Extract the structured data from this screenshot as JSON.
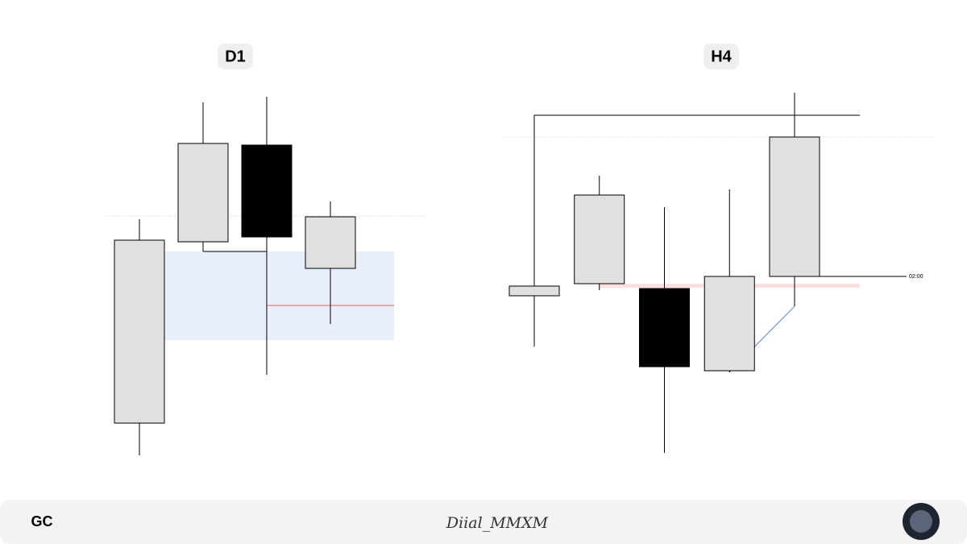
{
  "chart_data": [
    {
      "type": "candlestick",
      "title": "D1",
      "ylim": [
        20,
        500
      ],
      "up_color": "#e0e0e0",
      "down_color": "#000000",
      "open": [
        75,
        300,
        420,
        267
      ],
      "high": [
        328,
        473,
        480,
        350
      ],
      "low": [
        35,
        288,
        135,
        198
      ],
      "close": [
        302,
        422,
        306,
        331
      ]
    },
    {
      "type": "candlestick",
      "title": "H4",
      "ylim": [
        20,
        500
      ],
      "up_color": "#e0e0e0",
      "down_color": "#000000",
      "open": [
        233,
        248,
        242,
        140,
        257
      ],
      "high": [
        457,
        382,
        343,
        365,
        485
      ],
      "low": [
        170,
        240,
        38,
        138,
        220
      ],
      "close": [
        245,
        358,
        145,
        257,
        430
      ],
      "annotation": "02:00"
    }
  ],
  "footer": {
    "symbol": "GC",
    "signature": "Diial_MMXM"
  }
}
